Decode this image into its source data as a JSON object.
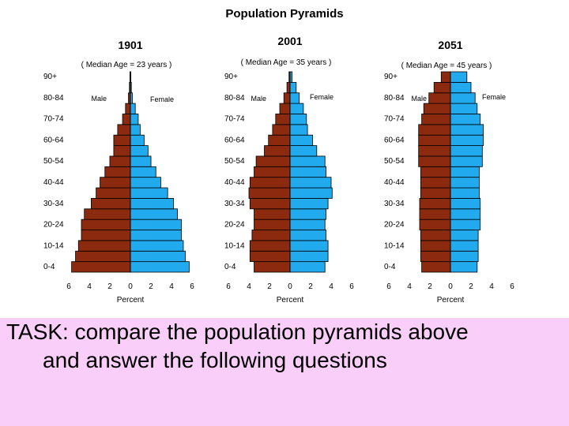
{
  "title": "Population Pyramids",
  "chart_data": [
    {
      "type": "bar",
      "title": "1901",
      "subtitle": "( Median Age = 23 years )",
      "categories": [
        "0-4",
        "5-9",
        "10-14",
        "15-19",
        "20-24",
        "25-29",
        "30-34",
        "35-39",
        "40-44",
        "45-49",
        "50-54",
        "55-59",
        "60-64",
        "65-69",
        "70-74",
        "75-79",
        "80-84",
        "85-89",
        "90+"
      ],
      "category_tick_labels": [
        "90+",
        "80-84",
        "70-74",
        "60-64",
        "50-54",
        "40-44",
        "30-34",
        "20-24",
        "10-14",
        "0-4"
      ],
      "series": [
        {
          "name": "Male",
          "values": [
            6.0,
            5.6,
            5.3,
            5.0,
            5.0,
            4.7,
            4.0,
            3.5,
            3.1,
            2.6,
            2.1,
            1.7,
            1.7,
            1.3,
            0.8,
            0.5,
            0.2,
            0.1,
            0.05
          ]
        },
        {
          "name": "Female",
          "values": [
            6.0,
            5.6,
            5.4,
            5.2,
            5.2,
            4.8,
            4.4,
            3.8,
            3.1,
            2.6,
            2.1,
            1.8,
            1.4,
            1.0,
            0.8,
            0.5,
            0.2,
            0.1,
            0.05
          ]
        }
      ],
      "xticks": [
        "6",
        "4",
        "2",
        "0",
        "2",
        "4",
        "6"
      ],
      "xlim": [
        -6,
        6
      ],
      "xlabel": "Percent"
    },
    {
      "type": "bar",
      "title": "2001",
      "subtitle": "( Median Age = 35 years )",
      "categories": [
        "0-4",
        "5-9",
        "10-14",
        "15-19",
        "20-24",
        "25-29",
        "30-34",
        "35-39",
        "40-44",
        "45-49",
        "50-54",
        "55-59",
        "60-64",
        "65-69",
        "70-74",
        "75-79",
        "80-84",
        "85-89",
        "90+"
      ],
      "category_tick_labels": [
        "90+",
        "80-84",
        "70-74",
        "60-64",
        "50-54",
        "40-44",
        "30-34",
        "20-24",
        "10-14",
        "0-4"
      ],
      "series": [
        {
          "name": "Male",
          "values": [
            3.5,
            3.9,
            3.9,
            3.7,
            3.5,
            3.5,
            3.9,
            4.0,
            3.9,
            3.5,
            3.3,
            2.5,
            2.1,
            1.7,
            1.4,
            1.0,
            0.6,
            0.3,
            0.1
          ]
        },
        {
          "name": "Female",
          "values": [
            3.4,
            3.7,
            3.7,
            3.5,
            3.4,
            3.5,
            3.7,
            4.1,
            4.0,
            3.5,
            3.4,
            2.6,
            2.2,
            1.7,
            1.6,
            1.3,
            0.9,
            0.6,
            0.2
          ]
        }
      ],
      "xticks": [
        "6",
        "4",
        "2",
        "0",
        "2",
        "4",
        "6"
      ],
      "xlim": [
        -6,
        6
      ],
      "xlabel": "Percent"
    },
    {
      "type": "bar",
      "title": "2051",
      "subtitle": "( Median Age = 45 years )",
      "categories": [
        "0-4",
        "5-9",
        "10-14",
        "15-19",
        "20-24",
        "25-29",
        "30-34",
        "35-39",
        "40-44",
        "45-49",
        "50-54",
        "55-59",
        "60-64",
        "65-69",
        "70-74",
        "75-79",
        "80-84",
        "85-89",
        "90+"
      ],
      "category_tick_labels": [
        "90+",
        "80-84",
        "70-74",
        "60-64",
        "50-54",
        "40-44",
        "30-34",
        "20-24",
        "10-14",
        "0-4"
      ],
      "series": [
        {
          "name": "Male",
          "values": [
            2.8,
            2.9,
            2.9,
            2.9,
            3.0,
            3.0,
            3.0,
            2.9,
            2.9,
            2.9,
            3.1,
            3.1,
            3.1,
            3.1,
            2.8,
            2.6,
            2.1,
            1.6,
            0.9
          ]
        },
        {
          "name": "Female",
          "values": [
            2.6,
            2.7,
            2.7,
            2.7,
            2.9,
            2.9,
            2.9,
            2.8,
            2.8,
            2.8,
            3.1,
            3.1,
            3.2,
            3.2,
            2.9,
            2.6,
            2.4,
            2.0,
            1.6
          ]
        }
      ],
      "xticks": [
        "6",
        "4",
        "2",
        "0",
        "2",
        "4",
        "6"
      ],
      "xlim": [
        -6,
        6
      ],
      "xlabel": "Percent"
    }
  ],
  "colors": {
    "male": "#8b2a0e",
    "female": "#22aaee",
    "bar_edge": "#000000",
    "text": "#000000",
    "task_background": "#f9cef9"
  },
  "task": {
    "line1": "TASK: compare the population pyramids above",
    "line2": "and answer the following questions"
  }
}
